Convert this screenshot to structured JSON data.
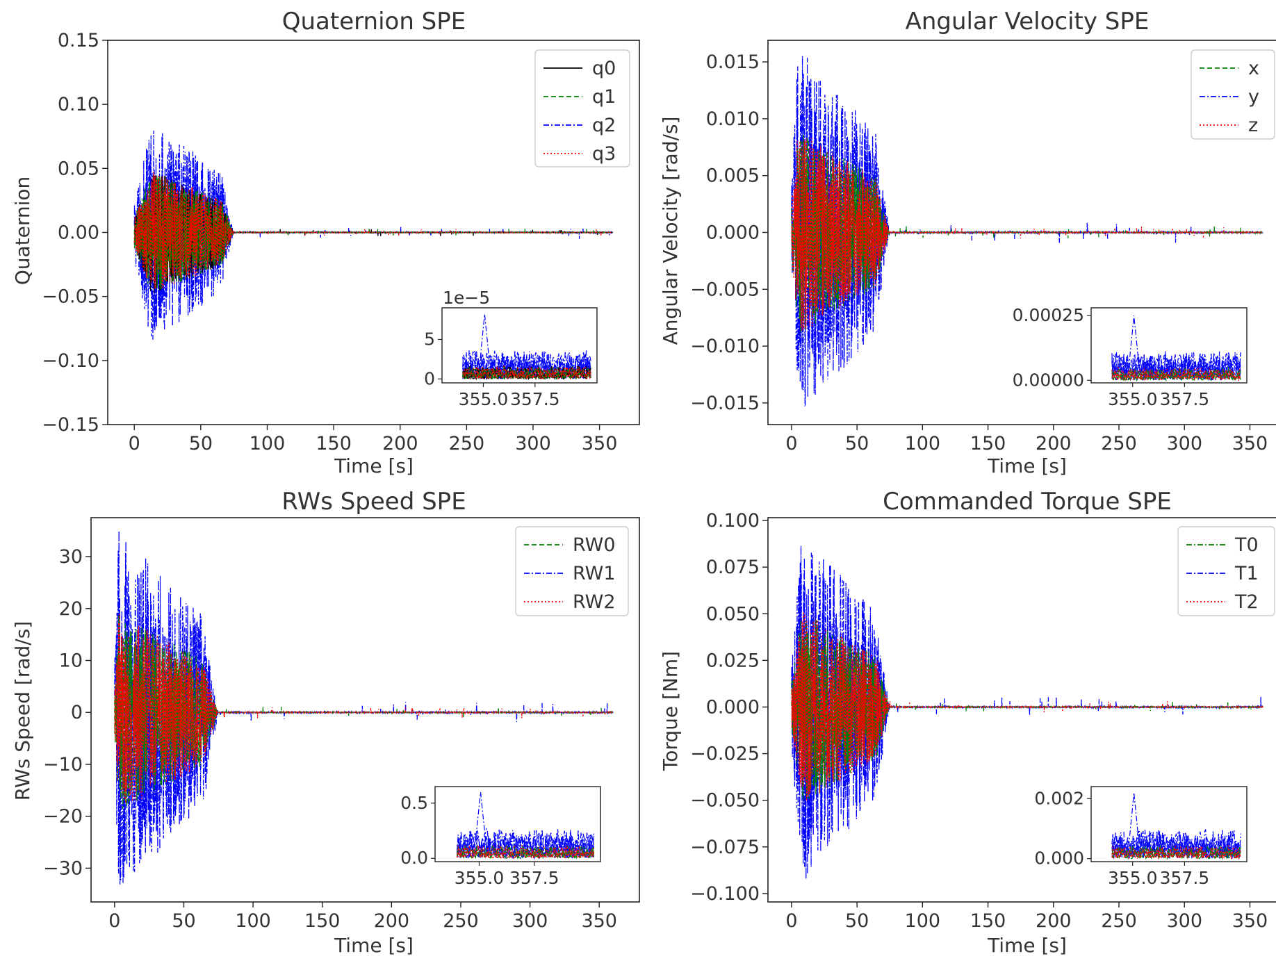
{
  "chart_data": [
    {
      "id": "quat",
      "type": "line",
      "title": "Quaternion SPE",
      "xlabel": "Time [s]",
      "ylabel": "Quaternion",
      "xlim": [
        -20,
        380
      ],
      "ylim": [
        -0.15,
        0.15
      ],
      "xticks": [
        0,
        50,
        100,
        150,
        200,
        250,
        300,
        350
      ],
      "xtick_labels": [
        "0",
        "50",
        "100",
        "150",
        "200",
        "250",
        "300",
        "350"
      ],
      "yticks": [
        -0.15,
        -0.1,
        -0.05,
        0.0,
        0.05,
        0.1,
        0.15
      ],
      "ytick_labels": [
        "−0.15",
        "−0.10",
        "−0.05",
        "0.00",
        "0.05",
        "0.10",
        "0.15"
      ],
      "grid": false,
      "legend_position": "top-right",
      "transient": {
        "start": 0,
        "peak_time": 13,
        "end": 75,
        "peak": 0.088,
        "primary_series": 2
      },
      "series": [
        {
          "name": "q0",
          "color": "#000000",
          "style": "solid"
        },
        {
          "name": "q1",
          "color": "#008000",
          "style": "dashed"
        },
        {
          "name": "q2",
          "color": "#0000ff",
          "style": "dashdot"
        },
        {
          "name": "q3",
          "color": "#ff0000",
          "style": "dotted"
        }
      ],
      "inset": {
        "offset_label": "1e−5",
        "xlim": [
          353,
          360.5
        ],
        "ylim": [
          -0.5,
          9
        ],
        "xticks": [
          355.0,
          357.5
        ],
        "xtick_labels": [
          "355.0",
          "357.5"
        ],
        "yticks": [
          0,
          5
        ],
        "ytick_labels": [
          "0",
          "5"
        ],
        "max_value": 8.2
      }
    },
    {
      "id": "angvel",
      "type": "line",
      "title": "Angular Velocity SPE",
      "xlabel": "Time [s]",
      "ylabel": "Angular Velocity [rad/s]",
      "xlim": [
        -18,
        380
      ],
      "ylim": [
        -0.0169,
        0.0169
      ],
      "xticks": [
        0,
        50,
        100,
        150,
        200,
        250,
        300,
        350
      ],
      "xtick_labels": [
        "0",
        "50",
        "100",
        "150",
        "200",
        "250",
        "300",
        "350"
      ],
      "yticks": [
        -0.015,
        -0.01,
        -0.005,
        0.0,
        0.005,
        0.01,
        0.015
      ],
      "ytick_labels": [
        "−0.015",
        "−0.010",
        "−0.005",
        "0.000",
        "0.005",
        "0.010",
        "0.015"
      ],
      "grid": false,
      "legend_position": "top-right",
      "transient": {
        "start": 0,
        "peak_time": 5,
        "end": 75,
        "peak": 0.0165,
        "primary_series": 1
      },
      "series": [
        {
          "name": "x",
          "color": "#008000",
          "style": "dashed"
        },
        {
          "name": "y",
          "color": "#0000ff",
          "style": "dashdot"
        },
        {
          "name": "z",
          "color": "#ff0000",
          "style": "dotted"
        }
      ],
      "inset": {
        "offset_label": "",
        "xlim": [
          353,
          360.5
        ],
        "ylim": [
          -1e-05,
          0.00028
        ],
        "xticks": [
          355.0,
          357.5
        ],
        "xtick_labels": [
          "355.0",
          "357.5"
        ],
        "yticks": [
          0.0,
          0.00025
        ],
        "ytick_labels": [
          "0.00000",
          "0.00025"
        ],
        "max_value": 0.00025
      }
    },
    {
      "id": "rws",
      "type": "line",
      "title": "RWs Speed SPE",
      "xlabel": "Time [s]",
      "ylabel": "RWs Speed [rad/s]",
      "xlim": [
        -17,
        379
      ],
      "ylim": [
        -36.5,
        37.5
      ],
      "xticks": [
        0,
        50,
        100,
        150,
        200,
        250,
        300,
        350
      ],
      "xtick_labels": [
        "0",
        "50",
        "100",
        "150",
        "200",
        "250",
        "300",
        "350"
      ],
      "yticks": [
        -30,
        -20,
        -10,
        0,
        10,
        20,
        30
      ],
      "ytick_labels": [
        "−30",
        "−20",
        "−10",
        "0",
        "10",
        "20",
        "30"
      ],
      "grid": false,
      "legend_position": "top-right",
      "transient": {
        "start": 0,
        "peak_time": 3,
        "end": 75,
        "peak": 35,
        "primary_series": 1
      },
      "series": [
        {
          "name": "RW0",
          "color": "#008000",
          "style": "dashed"
        },
        {
          "name": "RW1",
          "color": "#0000ff",
          "style": "dashdot"
        },
        {
          "name": "RW2",
          "color": "#ff0000",
          "style": "dotted"
        }
      ],
      "inset": {
        "offset_label": "",
        "xlim": [
          353,
          360.5
        ],
        "ylim": [
          -0.03,
          0.65
        ],
        "xticks": [
          355.0,
          357.5
        ],
        "xtick_labels": [
          "355.0",
          "357.5"
        ],
        "yticks": [
          0.0,
          0.5
        ],
        "ytick_labels": [
          "0.0",
          "0.5"
        ],
        "max_value": 0.6
      }
    },
    {
      "id": "torque",
      "type": "line",
      "title": "Commanded Torque SPE",
      "xlabel": "Time [s]",
      "ylabel": "Torque [Nm]",
      "xlim": [
        -18,
        380
      ],
      "ylim": [
        -0.1045,
        0.1015
      ],
      "xticks": [
        0,
        50,
        100,
        150,
        200,
        250,
        300,
        350
      ],
      "xtick_labels": [
        "0",
        "50",
        "100",
        "150",
        "200",
        "250",
        "300",
        "350"
      ],
      "yticks": [
        -0.1,
        -0.075,
        -0.05,
        -0.025,
        0.0,
        0.025,
        0.05,
        0.075,
        0.1
      ],
      "ytick_labels": [
        "−0.100",
        "−0.075",
        "−0.050",
        "−0.025",
        "0.000",
        "0.025",
        "0.050",
        "0.075",
        "0.100"
      ],
      "grid": false,
      "legend_position": "top-right",
      "transient": {
        "start": 0,
        "peak_time": 8,
        "end": 75,
        "peak": 0.095,
        "primary_series": 1
      },
      "series": [
        {
          "name": "T0",
          "color": "#008000",
          "style": "dashdot"
        },
        {
          "name": "T1",
          "color": "#0000ff",
          "style": "dashdot"
        },
        {
          "name": "T2",
          "color": "#ff0000",
          "style": "dotted"
        }
      ],
      "inset": {
        "offset_label": "",
        "xlim": [
          353,
          360.5
        ],
        "ylim": [
          -0.0001,
          0.0024
        ],
        "xticks": [
          355.0,
          357.5
        ],
        "xtick_labels": [
          "355.0",
          "357.5"
        ],
        "yticks": [
          0.0,
          0.002
        ],
        "ytick_labels": [
          "0.000",
          "0.002"
        ],
        "max_value": 0.0022
      }
    }
  ]
}
